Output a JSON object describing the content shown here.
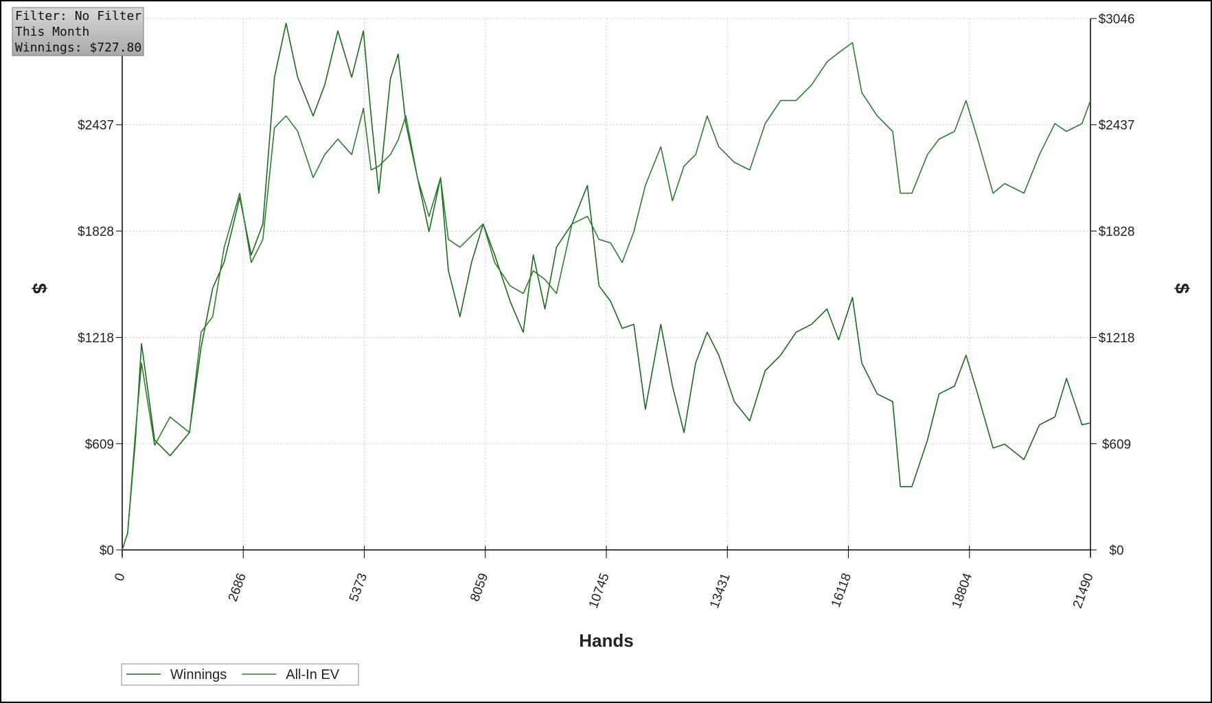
{
  "info": {
    "filter": "Filter: No Filter",
    "period": "This Month",
    "winnings": "Winnings: $727.80"
  },
  "chart_data": {
    "type": "line",
    "x_label": "Hands",
    "y_label": "$",
    "grid": true,
    "xlim": [
      0,
      21490
    ],
    "xticks": [
      0,
      2686,
      5373,
      8059,
      10745,
      13431,
      16118,
      18804,
      21490
    ],
    "ylim": [
      0,
      3046
    ],
    "yticks": [
      {
        "value": 0,
        "label": "$0"
      },
      {
        "value": 609,
        "label": "$609"
      },
      {
        "value": 1218,
        "label": "$1218"
      },
      {
        "value": 1828,
        "label": "$1828"
      },
      {
        "value": 2437,
        "label": "$2437"
      },
      {
        "value": 3046,
        "label": "$3046"
      }
    ],
    "x": [
      0,
      120,
      292,
      429,
      720,
      1063,
      1492,
      1749,
      2007,
      2264,
      2607,
      2864,
      3122,
      3379,
      3636,
      3894,
      4237,
      4494,
      4786,
      5094,
      5352,
      5523,
      5695,
      5952,
      6124,
      6295,
      6552,
      6810,
      7066,
      7238,
      7495,
      7752,
      8010,
      8267,
      8610,
      8901,
      9124,
      9382,
      9639,
      9982,
      10325,
      10582,
      10839,
      11097,
      11354,
      11611,
      11954,
      12212,
      12469,
      12726,
      12983,
      13241,
      13584,
      13927,
      14270,
      14613,
      14956,
      15299,
      15642,
      15899,
      16208,
      16414,
      16757,
      17100,
      17271,
      17528,
      17871,
      18129,
      18472,
      18729,
      18986,
      19329,
      19586,
      20015,
      20358,
      20701,
      20958,
      21302,
      21490
    ],
    "series": [
      {
        "name": "Winnings",
        "color": "#1a6a1a",
        "values": [
          0,
          97,
          629,
          1182,
          629,
          540,
          673,
          1160,
          1500,
          1650,
          2020,
          1691,
          1868,
          2709,
          3019,
          2709,
          2488,
          2665,
          2975,
          2709,
          2975,
          2488,
          2045,
          2700,
          2842,
          2444,
          2134,
          1824,
          2134,
          1603,
          1337,
          1647,
          1868,
          1691,
          1425,
          1248,
          1691,
          1381,
          1735,
          1868,
          2089,
          1514,
          1425,
          1270,
          1293,
          806,
          1293,
          939,
          673,
          1071,
          1248,
          1116,
          850,
          740,
          1027,
          1116,
          1248,
          1293,
          1381,
          1204,
          1448,
          1071,
          894,
          850,
          363,
          363,
          629,
          894,
          939,
          1116,
          894,
          584,
          606,
          518,
          717,
          762,
          983,
          717,
          728
        ]
      },
      {
        "name": "All-In EV",
        "color": "#2e7d2e",
        "values": [
          0,
          97,
          673,
          1071,
          600,
          762,
          673,
          1248,
          1337,
          1735,
          2045,
          1647,
          1780,
          2420,
          2488,
          2400,
          2134,
          2266,
          2355,
          2266,
          2532,
          2178,
          2200,
          2266,
          2350,
          2488,
          2134,
          1912,
          2134,
          1780,
          1735,
          1800,
          1868,
          1647,
          1514,
          1470,
          1600,
          1550,
          1470,
          1868,
          1912,
          1780,
          1760,
          1647,
          1824,
          2089,
          2311,
          2001,
          2200,
          2266,
          2488,
          2311,
          2222,
          2178,
          2444,
          2576,
          2576,
          2665,
          2797,
          2850,
          2908,
          2621,
          2488,
          2399,
          2045,
          2045,
          2266,
          2355,
          2399,
          2576,
          2355,
          2045,
          2100,
          2045,
          2266,
          2444,
          2399,
          2444,
          2576
        ]
      }
    ]
  }
}
